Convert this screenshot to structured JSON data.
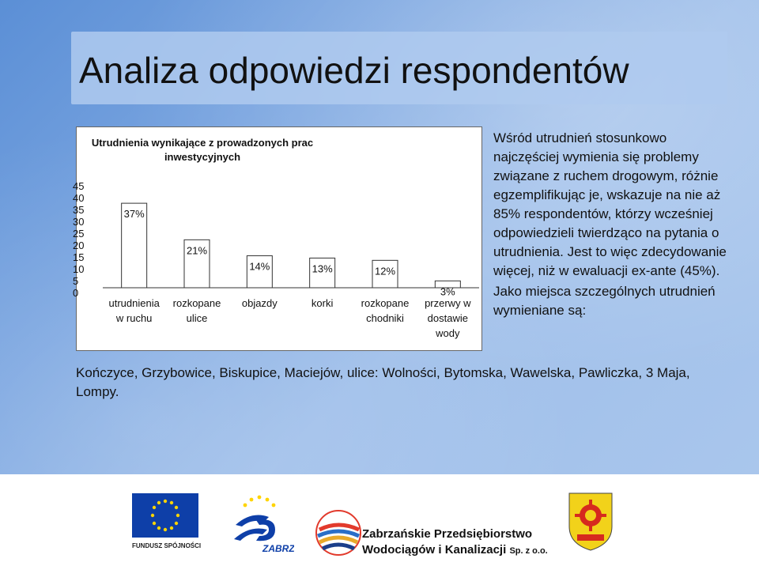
{
  "slide": {
    "title": "Analiza odpowiedzi respondentów",
    "right_paragraphs": [
      "Wśród utrudnień stosunkowo najczęściej wymienia się problemy związane z ruchem drogowym, różnie egzemplifikując je, wskazuje na nie aż 85% respondentów, którzy wcześniej odpowiedzieli twierdząco na pytania o utrudnienia. Jest to więc zdecydowanie więcej, niż w ewaluacji ex-ante (45%).",
      "Jako miejsca szczególnych utrudnień wymieniane są:"
    ],
    "bottom_text": "Kończyce, Grzybowice, Biskupice, Maciejów, ulice: Wolności, Bytomska, Wawelska, Pawliczka, 3 Maja, Lompy."
  },
  "chart_data": {
    "type": "bar",
    "title_lines": [
      "Utrudnienia wynikające z prowadzonych prac",
      "inwestycyjnych"
    ],
    "categories": [
      [
        "utrudnienia",
        "w ruchu"
      ],
      [
        "rozkopane",
        "ulice"
      ],
      [
        "objazdy"
      ],
      [
        "korki"
      ],
      [
        "rozkopane",
        "chodniki"
      ],
      [
        "przerwy w",
        "dostawie",
        "wody"
      ]
    ],
    "values": [
      37,
      21,
      14,
      13,
      12,
      3
    ],
    "data_labels": [
      "37%",
      "21%",
      "14%",
      "13%",
      "12%",
      "3%"
    ],
    "y_ticks": [
      "45",
      "40",
      "35",
      "30",
      "25",
      "20",
      "15",
      "10",
      "5",
      "0"
    ],
    "ylim": [
      0,
      45
    ],
    "bar_color": "#ffffff",
    "bar_border": "#333333"
  },
  "logos": {
    "eu_caption": "FUNDUSZ SPÓJNOŚCI",
    "fs_label": "ZABRZE",
    "company_line1": "Zabrzańskie Przedsiębiorstwo",
    "company_line2": "Wodociągów i Kanalizacji",
    "company_suffix": "Sp. z o.o."
  }
}
